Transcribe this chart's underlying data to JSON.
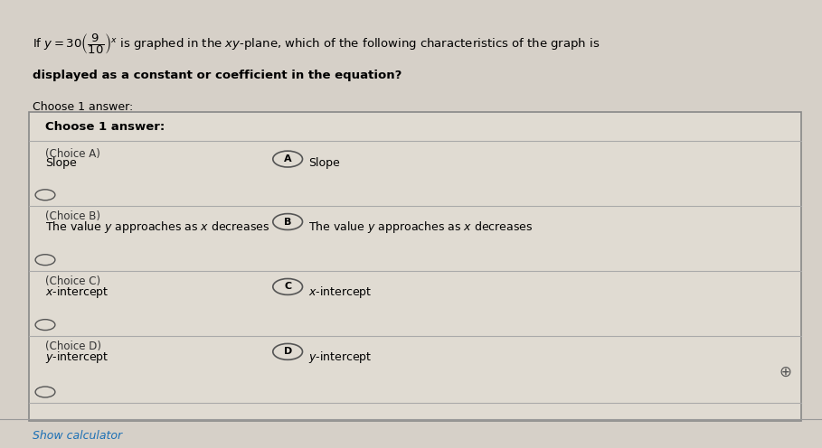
{
  "bg_color": "#d6d0c8",
  "box_bg": "#e8e4dc",
  "inner_box_bg": "#e0dbd2",
  "title_line1": "If $y = 30\\left(\\dfrac{9}{10}\\right)^x$ is graphed in the $xy$-plane, which of the following characteristics of the graph is",
  "title_line2": "displayed as a constant or coefficient in the equation?",
  "choose_label": "Choose 1 answer:",
  "choices": [
    {
      "label": "(Choice A)",
      "text": "Slope",
      "circle_letter": "A",
      "circle_text": "Slope"
    },
    {
      "label": "(Choice B)",
      "text": "The value $y$ approaches as $x$ decreases",
      "circle_letter": "B",
      "circle_text": "The value $y$ approaches as $x$ decreases"
    },
    {
      "label": "(Choice C)",
      "text": "$x$-intercept",
      "circle_letter": "C",
      "circle_text": "$x$-intercept"
    },
    {
      "label": "(Choice D)",
      "text": "$y$-intercept",
      "circle_letter": "D",
      "circle_text": "$y$-intercept"
    }
  ],
  "show_calculator": "Show calculator",
  "crosshair_color": "#555555"
}
